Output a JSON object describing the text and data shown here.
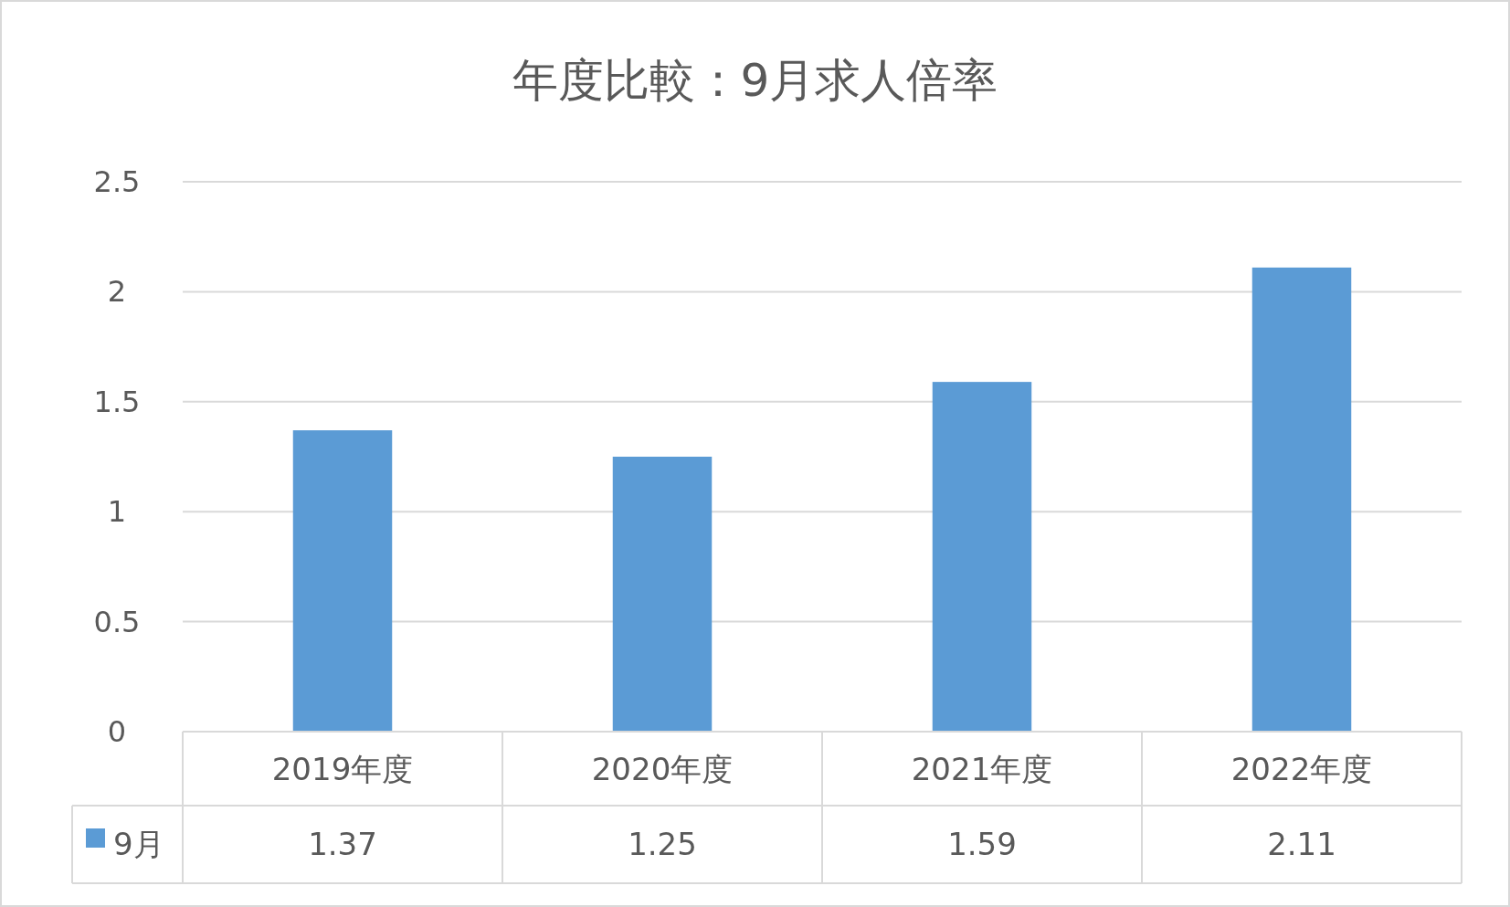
{
  "chart_data": {
    "type": "bar",
    "title": "年度比較：9月求人倍率",
    "categories": [
      "2019年度",
      "2020年度",
      "2021年度",
      "2022年度"
    ],
    "series": [
      {
        "name": "9月",
        "color": "#5b9bd5",
        "values": [
          1.37,
          1.25,
          1.59,
          2.11
        ]
      }
    ],
    "ylim": [
      0,
      2.5
    ],
    "yticks": [
      0,
      0.5,
      1,
      1.5,
      2,
      2.5
    ],
    "grid": "y",
    "legend": "bottom",
    "data_labels": true
  }
}
